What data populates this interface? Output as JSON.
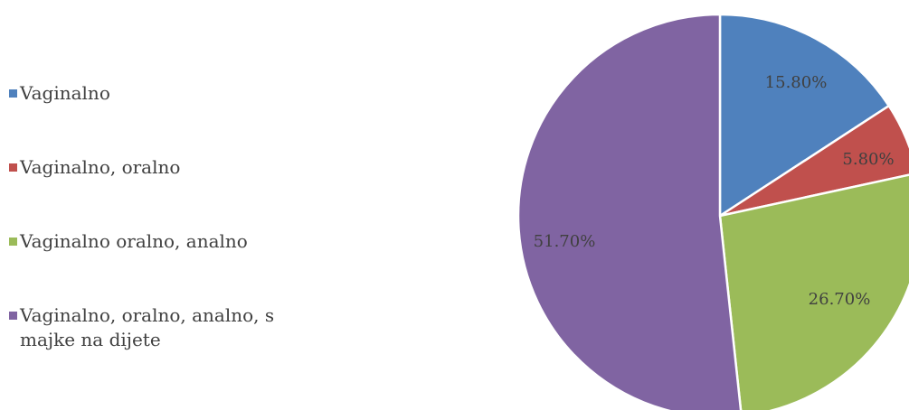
{
  "chart_data": {
    "type": "pie",
    "title": "",
    "legend_position": "left",
    "slices": [
      {
        "name": "Vaginalno",
        "value": 15.8,
        "label": "15.80%",
        "color": "#4F81BD"
      },
      {
        "name": "Vaginalno, oralno",
        "value": 5.8,
        "label": "5.80%",
        "color": "#C0504D"
      },
      {
        "name": "Vaginalno oralno, analno",
        "value": 26.7,
        "label": "26.70%",
        "color": "#9BBB59"
      },
      {
        "name": "Vaginalno, oralno, analno, s majke na dijete",
        "value": 51.7,
        "label": "51.70%",
        "color": "#8064A2"
      }
    ]
  }
}
